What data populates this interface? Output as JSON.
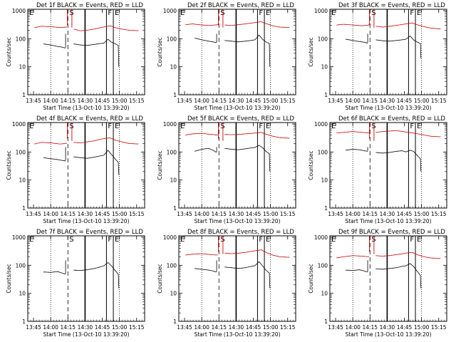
{
  "figure": {
    "xlabel": "Start Time (13-Oct-10 13:39:20)",
    "ylabel": "Counts/sec",
    "xticks": [
      "13:45",
      "14:00",
      "14:15",
      "14:30",
      "14:45",
      "15:00",
      "15:15"
    ],
    "yticks": [
      "1",
      "10",
      "100",
      "1000"
    ],
    "colors": {
      "events": "#000000",
      "lld": "#cc0000"
    }
  },
  "chart_data": [
    {
      "type": "line",
      "title": "Det 1f BLACK = Events, RED = LLD",
      "x_range_min": [
        5.67,
        96.67
      ],
      "y_range_log10": [
        0,
        3.05
      ],
      "flags": [
        {
          "label": "E",
          "x": 5.67
        },
        {
          "label": "S",
          "x": 35.67
        },
        {
          "label": "F",
          "x": 68.67
        },
        {
          "label": "E",
          "x": 74.67
        }
      ],
      "events_baseline": [
        [
          13.7,
          68
        ],
        [
          20,
          62
        ],
        [
          26,
          55
        ],
        [
          30,
          52
        ],
        [
          32.9,
          48
        ],
        [
          40,
          68
        ],
        [
          46,
          62
        ],
        [
          52,
          60
        ],
        [
          58,
          65
        ],
        [
          63,
          70
        ],
        [
          66.4,
          72
        ],
        [
          70,
          100
        ],
        [
          73,
          78
        ],
        [
          76,
          70
        ],
        [
          79,
          60
        ],
        [
          79.5,
          10
        ]
      ],
      "lld_baseline": [
        [
          5.7,
          260
        ],
        [
          12,
          290
        ],
        [
          20,
          280
        ],
        [
          28,
          260
        ],
        [
          34,
          270
        ],
        [
          40,
          230
        ],
        [
          46,
          200
        ],
        [
          52,
          210
        ],
        [
          58,
          230
        ],
        [
          64,
          260
        ],
        [
          68,
          280
        ],
        [
          72,
          300
        ],
        [
          76,
          260
        ],
        [
          82,
          230
        ],
        [
          88,
          210
        ],
        [
          96.5,
          200
        ]
      ]
    },
    {
      "type": "line",
      "title": "Det 2f BLACK = Events, RED = LLD",
      "x_range_min": [
        5.67,
        96.67
      ],
      "y_range_log10": [
        0,
        3.05
      ],
      "flags": [
        {
          "label": "E",
          "x": 5.67
        },
        {
          "label": "S",
          "x": 35.67
        },
        {
          "label": "F",
          "x": 68.67
        },
        {
          "label": "E",
          "x": 74.67
        }
      ],
      "events_baseline": [
        [
          13.7,
          110
        ],
        [
          20,
          95
        ],
        [
          26,
          85
        ],
        [
          30,
          80
        ],
        [
          32.9,
          75
        ],
        [
          40,
          90
        ],
        [
          46,
          85
        ],
        [
          52,
          80
        ],
        [
          58,
          85
        ],
        [
          63,
          90
        ],
        [
          66.4,
          95
        ],
        [
          70,
          140
        ],
        [
          73,
          100
        ],
        [
          76,
          80
        ],
        [
          79,
          70
        ],
        [
          79.5,
          10
        ]
      ],
      "lld_baseline": [
        [
          5.7,
          330
        ],
        [
          12,
          350
        ],
        [
          20,
          320
        ],
        [
          28,
          310
        ],
        [
          34,
          330
        ],
        [
          40,
          320
        ],
        [
          46,
          310
        ],
        [
          52,
          330
        ],
        [
          58,
          350
        ],
        [
          64,
          380
        ],
        [
          68,
          400
        ],
        [
          72,
          420
        ],
        [
          76,
          360
        ],
        [
          82,
          300
        ],
        [
          88,
          270
        ],
        [
          96.5,
          260
        ]
      ]
    },
    {
      "type": "line",
      "title": "Det 3f BLACK = Events, RED = LLD",
      "x_range_min": [
        5.67,
        96.67
      ],
      "y_range_log10": [
        0,
        3.05
      ],
      "flags": [
        {
          "label": "E",
          "x": 5.67
        },
        {
          "label": "S",
          "x": 35.67
        },
        {
          "label": "F",
          "x": 68.67
        },
        {
          "label": "E",
          "x": 74.67
        }
      ],
      "events_baseline": [
        [
          13.7,
          100
        ],
        [
          20,
          90
        ],
        [
          26,
          82
        ],
        [
          30,
          78
        ],
        [
          32.9,
          72
        ],
        [
          40,
          95
        ],
        [
          46,
          88
        ],
        [
          52,
          85
        ],
        [
          58,
          90
        ],
        [
          63,
          95
        ],
        [
          66.4,
          100
        ],
        [
          70,
          130
        ],
        [
          73,
          95
        ],
        [
          76,
          80
        ],
        [
          79,
          70
        ],
        [
          79.5,
          20
        ]
      ],
      "lld_baseline": [
        [
          5.7,
          320
        ],
        [
          12,
          340
        ],
        [
          20,
          320
        ],
        [
          28,
          300
        ],
        [
          34,
          320
        ],
        [
          40,
          290
        ],
        [
          46,
          270
        ],
        [
          52,
          290
        ],
        [
          58,
          310
        ],
        [
          64,
          340
        ],
        [
          68,
          360
        ],
        [
          72,
          380
        ],
        [
          76,
          330
        ],
        [
          82,
          280
        ],
        [
          88,
          250
        ],
        [
          96.5,
          230
        ]
      ]
    },
    {
      "type": "line",
      "title": "Det 4f BLACK = Events, RED = LLD",
      "x_range_min": [
        5.67,
        96.67
      ],
      "y_range_log10": [
        0,
        3.05
      ],
      "flags": [
        {
          "label": "E",
          "x": 5.67
        },
        {
          "label": "S",
          "x": 35.67
        },
        {
          "label": "F",
          "x": 68.67
        },
        {
          "label": "E",
          "x": 74.67
        }
      ],
      "events_baseline": [
        [
          13.7,
          65
        ],
        [
          20,
          60
        ],
        [
          26,
          56
        ],
        [
          30,
          52
        ],
        [
          32.9,
          50
        ],
        [
          40,
          70
        ],
        [
          46,
          65
        ],
        [
          52,
          62
        ],
        [
          58,
          68
        ],
        [
          63,
          75
        ],
        [
          66.4,
          80
        ],
        [
          70,
          120
        ],
        [
          73,
          85
        ],
        [
          76,
          60
        ],
        [
          79,
          45
        ],
        [
          79.5,
          15
        ]
      ],
      "lld_baseline": [
        [
          5.7,
          200
        ],
        [
          12,
          230
        ],
        [
          20,
          220
        ],
        [
          28,
          200
        ],
        [
          34,
          210
        ],
        [
          40,
          230
        ],
        [
          46,
          220
        ],
        [
          52,
          240
        ],
        [
          58,
          260
        ],
        [
          64,
          300
        ],
        [
          68,
          320
        ],
        [
          72,
          330
        ],
        [
          76,
          280
        ],
        [
          82,
          240
        ],
        [
          88,
          210
        ],
        [
          96.5,
          200
        ]
      ]
    },
    {
      "type": "line",
      "title": "Det 5f BLACK = Events, RED = LLD",
      "x_range_min": [
        5.67,
        96.67
      ],
      "y_range_log10": [
        0,
        3.05
      ],
      "flags": [
        {
          "label": "E",
          "x": 5.67
        },
        {
          "label": "S",
          "x": 35.67
        },
        {
          "label": "F",
          "x": 68.67
        },
        {
          "label": "E",
          "x": 74.67
        }
      ],
      "events_baseline": [
        [
          13.7,
          110
        ],
        [
          20,
          130
        ],
        [
          26,
          140
        ],
        [
          30,
          120
        ],
        [
          32.9,
          100
        ],
        [
          40,
          140
        ],
        [
          46,
          130
        ],
        [
          52,
          125
        ],
        [
          58,
          135
        ],
        [
          63,
          145
        ],
        [
          66.4,
          150
        ],
        [
          70,
          180
        ],
        [
          73,
          150
        ],
        [
          76,
          110
        ],
        [
          79,
          90
        ],
        [
          79.5,
          20
        ]
      ],
      "lld_baseline": [
        [
          5.7,
          420
        ],
        [
          12,
          460
        ],
        [
          20,
          480
        ],
        [
          28,
          440
        ],
        [
          34,
          420
        ],
        [
          40,
          440
        ],
        [
          46,
          430
        ],
        [
          52,
          440
        ],
        [
          58,
          460
        ],
        [
          64,
          480
        ],
        [
          68,
          500
        ],
        [
          72,
          520
        ],
        [
          76,
          450
        ],
        [
          82,
          380
        ],
        [
          88,
          340
        ],
        [
          96.5,
          320
        ]
      ]
    },
    {
      "type": "line",
      "title": "Det 6f BLACK = Events, RED = LLD",
      "x_range_min": [
        5.67,
        96.67
      ],
      "y_range_log10": [
        0,
        3.05
      ],
      "flags": [
        {
          "label": "E",
          "x": 5.67
        },
        {
          "label": "S",
          "x": 35.67
        },
        {
          "label": "F",
          "x": 68.67
        },
        {
          "label": "E",
          "x": 74.67
        }
      ],
      "events_baseline": [
        [
          13.7,
          120
        ],
        [
          20,
          130
        ],
        [
          26,
          125
        ],
        [
          30,
          115
        ],
        [
          32.9,
          110
        ],
        [
          40,
          100
        ],
        [
          46,
          95
        ],
        [
          52,
          100
        ],
        [
          58,
          110
        ],
        [
          63,
          115
        ],
        [
          66.4,
          105
        ],
        [
          70,
          120
        ],
        [
          73,
          110
        ],
        [
          76,
          80
        ],
        [
          79,
          60
        ],
        [
          79.5,
          20
        ]
      ],
      "lld_baseline": [
        [
          5.7,
          500
        ],
        [
          12,
          520
        ],
        [
          20,
          560
        ],
        [
          28,
          520
        ],
        [
          34,
          500
        ],
        [
          40,
          520
        ],
        [
          46,
          560
        ],
        [
          52,
          580
        ],
        [
          58,
          600
        ],
        [
          64,
          560
        ],
        [
          68,
          520
        ],
        [
          72,
          500
        ],
        [
          76,
          470
        ],
        [
          82,
          420
        ],
        [
          88,
          380
        ],
        [
          96.5,
          360
        ]
      ]
    },
    {
      "type": "line",
      "title": "Det 7f BLACK = Events, RED = LLD",
      "x_range_min": [
        5.67,
        96.67
      ],
      "y_range_log10": [
        0,
        3.05
      ],
      "flags": [
        {
          "label": "E",
          "x": 5.67
        },
        {
          "label": "S",
          "x": 35.67
        },
        {
          "label": "F",
          "x": 68.67
        },
        {
          "label": "E",
          "x": 74.67
        }
      ],
      "events_baseline": [
        [
          13.7,
          60
        ],
        [
          20,
          58
        ],
        [
          26,
          62
        ],
        [
          30,
          55
        ],
        [
          32.9,
          50
        ],
        [
          40,
          70
        ],
        [
          46,
          68
        ],
        [
          52,
          72
        ],
        [
          58,
          80
        ],
        [
          63,
          90
        ],
        [
          66.4,
          100
        ],
        [
          70,
          130
        ],
        [
          73,
          100
        ],
        [
          76,
          70
        ],
        [
          79,
          50
        ],
        [
          79.5,
          15
        ]
      ],
      "lld_baseline": []
    },
    {
      "type": "line",
      "title": "Det 8f BLACK = Events, RED = LLD",
      "x_range_min": [
        5.67,
        96.67
      ],
      "y_range_log10": [
        0,
        3.05
      ],
      "flags": [
        {
          "label": "E",
          "x": 5.67
        },
        {
          "label": "S",
          "x": 35.67
        },
        {
          "label": "F",
          "x": 68.67
        },
        {
          "label": "E",
          "x": 74.67
        }
      ],
      "events_baseline": [
        [
          13.7,
          80
        ],
        [
          20,
          75
        ],
        [
          26,
          70
        ],
        [
          30,
          65
        ],
        [
          32.9,
          60
        ],
        [
          40,
          90
        ],
        [
          46,
          85
        ],
        [
          52,
          80
        ],
        [
          58,
          85
        ],
        [
          63,
          95
        ],
        [
          66.4,
          100
        ],
        [
          70,
          140
        ],
        [
          73,
          100
        ],
        [
          76,
          70
        ],
        [
          79,
          55
        ],
        [
          79.5,
          15
        ]
      ],
      "lld_baseline": [
        [
          5.7,
          240
        ],
        [
          12,
          260
        ],
        [
          20,
          270
        ],
        [
          28,
          250
        ],
        [
          34,
          240
        ],
        [
          40,
          280
        ],
        [
          46,
          270
        ],
        [
          52,
          280
        ],
        [
          58,
          300
        ],
        [
          64,
          330
        ],
        [
          68,
          350
        ],
        [
          72,
          370
        ],
        [
          76,
          300
        ],
        [
          82,
          240
        ],
        [
          88,
          210
        ],
        [
          96.5,
          200
        ]
      ]
    },
    {
      "type": "line",
      "title": "Det 9f BLACK = Events, RED = LLD",
      "x_range_min": [
        5.67,
        96.67
      ],
      "y_range_log10": [
        0,
        3.05
      ],
      "flags": [
        {
          "label": "E",
          "x": 5.67
        },
        {
          "label": "S",
          "x": 35.67
        },
        {
          "label": "F",
          "x": 68.67
        },
        {
          "label": "E",
          "x": 74.67
        }
      ],
      "events_baseline": [
        [
          13.7,
          70
        ],
        [
          20,
          68
        ],
        [
          26,
          72
        ],
        [
          30,
          65
        ],
        [
          32.9,
          60
        ],
        [
          40,
          78
        ],
        [
          46,
          75
        ],
        [
          52,
          80
        ],
        [
          58,
          85
        ],
        [
          63,
          95
        ],
        [
          66.4,
          100
        ],
        [
          70,
          120
        ],
        [
          73,
          95
        ],
        [
          76,
          65
        ],
        [
          79,
          45
        ],
        [
          79.5,
          15
        ]
      ],
      "lld_baseline": [
        [
          5.7,
          190
        ],
        [
          12,
          210
        ],
        [
          20,
          230
        ],
        [
          28,
          220
        ],
        [
          34,
          210
        ],
        [
          40,
          230
        ],
        [
          46,
          220
        ],
        [
          52,
          230
        ],
        [
          58,
          250
        ],
        [
          64,
          270
        ],
        [
          68,
          290
        ],
        [
          72,
          300
        ],
        [
          76,
          250
        ],
        [
          82,
          210
        ],
        [
          88,
          190
        ],
        [
          96.5,
          180
        ]
      ]
    }
  ]
}
